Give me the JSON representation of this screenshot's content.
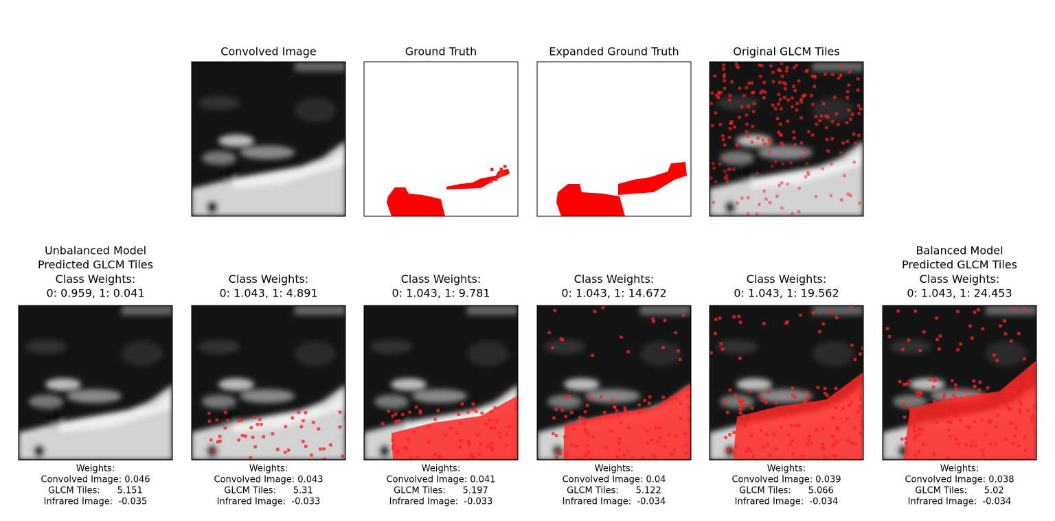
{
  "top_panels": [
    {
      "title": [
        "Convolved Image"
      ]
    },
    {
      "title": [
        "Ground Truth"
      ]
    },
    {
      "title": [
        "Expanded Ground Truth"
      ]
    },
    {
      "title": [
        "Original GLCM Tiles"
      ]
    }
  ],
  "bottom_panels": [
    {
      "title": [
        "Unbalanced Model",
        "Predicted GLCM Tiles",
        "Class Weights:",
        "0: 0.959, 1: 0.041"
      ],
      "caption": [
        "Weights:",
        "Convolved Image: 0.046",
        "GLCM Tiles:      5.151",
        "Infrared Image:  -0.035"
      ]
    },
    {
      "title": [
        "Class Weights:",
        "0: 1.043, 1: 4.891"
      ],
      "caption": [
        "Weights:",
        "Convolved Image: 0.043",
        "GLCM Tiles:      5.31",
        "Infrared Image:  -0.033"
      ]
    },
    {
      "title": [
        "Class Weights:",
        "0: 1.043, 1: 9.781"
      ],
      "caption": [
        "Weights:",
        "Convolved Image: 0.041",
        "GLCM Tiles:      5.197",
        "Infrared Image:  -0.033"
      ]
    },
    {
      "title": [
        "Class Weights:",
        "0: 1.043, 1: 14.672"
      ],
      "caption": [
        "Weights:",
        "Convolved Image: 0.04",
        "GLCM Tiles:      5.122",
        "Infrared Image:  -0.034"
      ]
    },
    {
      "title": [
        "Class Weights:",
        "0: 1.043, 1: 19.562"
      ],
      "caption": [
        "Weights:",
        "Convolved Image: 0.039",
        "GLCM Tiles:      5.066",
        "Infrared Image:  -0.034"
      ]
    },
    {
      "title": [
        "Balanced Model",
        "Predicted GLCM Tiles",
        "Class Weights:",
        "0: 1.043, 1: 24.453"
      ],
      "caption": [
        "Weights:",
        "Convolved Image: 0.038",
        "GLCM Tiles:      5.02",
        "Infrared Image:  -0.034"
      ]
    }
  ]
}
